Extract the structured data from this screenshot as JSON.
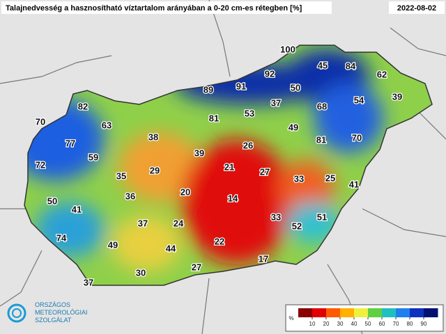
{
  "header": {
    "title": "Talajnedvesség a hasznosítható víztartalom arányában a 0-20 cm-es rétegben [%]",
    "date": "2022-08-02"
  },
  "stations": [
    100,
    45,
    84,
    62,
    89,
    91,
    92,
    50,
    39,
    82,
    37,
    68,
    54,
    63,
    81,
    53,
    70,
    77,
    38,
    49,
    81,
    70,
    59,
    39,
    26,
    72,
    35,
    29,
    21,
    27,
    33,
    25,
    41,
    20,
    14,
    50,
    41,
    36,
    33,
    51,
    37,
    24,
    52,
    74,
    49,
    44,
    22,
    17,
    27,
    30,
    37
  ],
  "legend": {
    "unit": "%",
    "ticks": [
      10,
      20,
      30,
      40,
      50,
      60,
      70,
      80,
      90
    ]
  },
  "logo": {
    "lines": [
      "ORSZÁGOS",
      "METEOROLÓGIAI",
      "SZOLGÁLAT"
    ]
  }
}
